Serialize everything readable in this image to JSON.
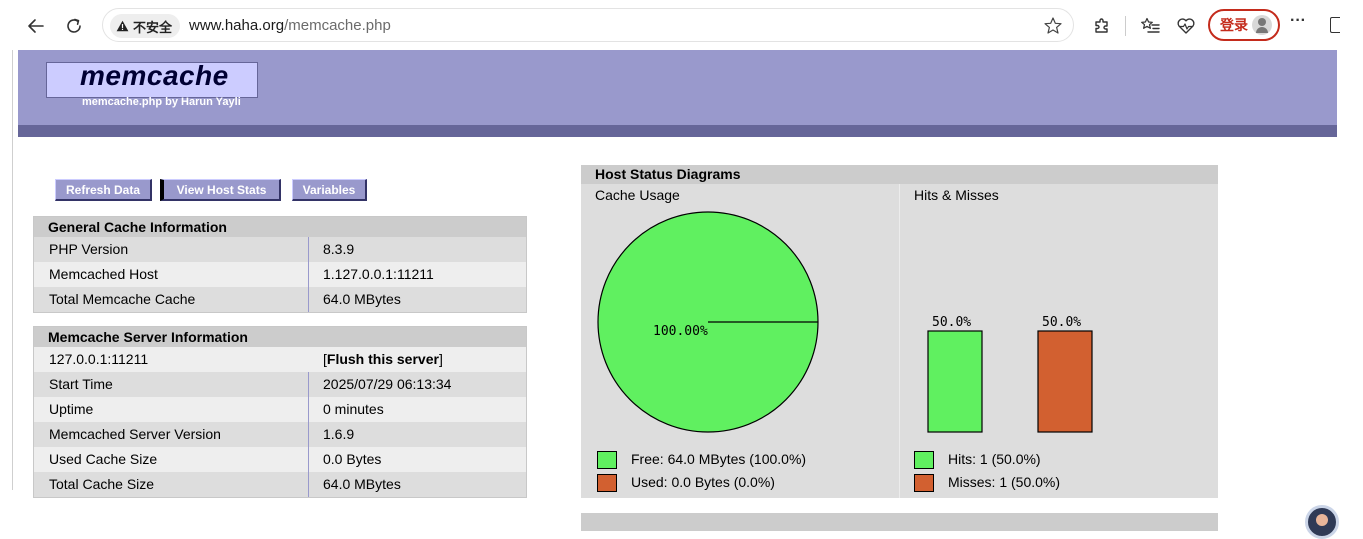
{
  "browser": {
    "security_label": "不安全",
    "url_host": "www.haha.org",
    "url_path": "/memcache.php",
    "login_label": "登录",
    "more_label": "···"
  },
  "header": {
    "title": "memcache",
    "subtitle": "memcache.php by Harun Yayli"
  },
  "buttons": {
    "refresh": "Refresh Data",
    "host_stats": "View Host Stats",
    "variables": "Variables"
  },
  "general": {
    "title": "General Cache Information",
    "rows": [
      {
        "k": "PHP Version",
        "v": "8.3.9"
      },
      {
        "k": "Memcached Host",
        "v": "1.127.0.0.1:11211"
      },
      {
        "k": "Total Memcache Cache",
        "v": "64.0 MBytes"
      }
    ]
  },
  "server": {
    "title": "Memcache Server Information",
    "host": "127.0.0.1:11211",
    "flush_open": "[",
    "flush_label": "Flush this server",
    "flush_close": "]",
    "rows": [
      {
        "k": "Start Time",
        "v": "2025/07/29 06:13:34"
      },
      {
        "k": "Uptime",
        "v": "0 minutes"
      },
      {
        "k": "Memcached Server Version",
        "v": "1.6.9"
      },
      {
        "k": "Used Cache Size",
        "v": "0.0 Bytes"
      },
      {
        "k": "Total Cache Size",
        "v": "64.0 MBytes"
      }
    ]
  },
  "diagrams": {
    "title": "Host Status Diagrams",
    "cache_usage": {
      "title": "Cache Usage",
      "pie_label": "100.00%",
      "free_legend": "Free: 64.0 MBytes (100.0%)",
      "used_legend": "Used: 0.0 Bytes (0.0%)"
    },
    "hits_misses": {
      "title": "Hits & Misses",
      "hits_pct": "50.0%",
      "misses_pct": "50.0%",
      "hits_legend": "Hits: 1 (50.0%)",
      "misses_legend": "Misses: 1 (50.0%)"
    },
    "colors": {
      "free": "#60f060",
      "used": "#d26030"
    }
  },
  "chart_data": [
    {
      "type": "pie",
      "title": "Cache Usage",
      "categories": [
        "Free",
        "Used"
      ],
      "values": [
        100.0,
        0.0
      ]
    },
    {
      "type": "bar",
      "title": "Hits & Misses",
      "categories": [
        "Hits",
        "Misses"
      ],
      "values": [
        50.0,
        50.0
      ]
    }
  ]
}
